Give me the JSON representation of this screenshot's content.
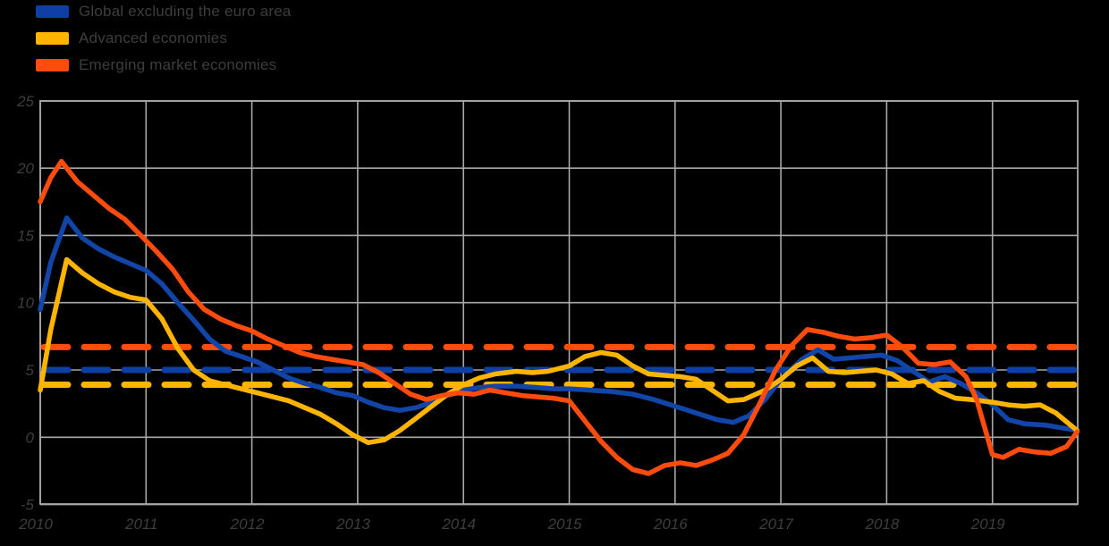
{
  "page": {
    "background_color": "#000000",
    "text_color": "#3d3d3c",
    "grid_color": "#a8a8a8"
  },
  "legend": {
    "items": [
      {
        "label": "Global excluding the euro area",
        "color": "#0d3fa5"
      },
      {
        "label": "Advanced economies",
        "color": "#ffb400"
      },
      {
        "label": "Emerging market economies",
        "color": "#ff4b0c"
      }
    ]
  },
  "chart_data": {
    "type": "line",
    "title": "",
    "xlabel": "",
    "ylabel": "",
    "grid": true,
    "legend_position": "top-left",
    "x_axis": {
      "min": 2010,
      "max": 2019.8,
      "ticks": [
        2010,
        2011,
        2012,
        2013,
        2014,
        2015,
        2016,
        2017,
        2018,
        2019
      ]
    },
    "y_axis": {
      "min": -5,
      "max": 25,
      "ticks": [
        25,
        20,
        15,
        10,
        5,
        0,
        -5
      ]
    },
    "average_lines": [
      {
        "name": "Global excluding the euro area (average)",
        "value": 5.0,
        "color": "#0d3fa5"
      },
      {
        "name": "Advanced economies (average)",
        "value": 3.9,
        "color": "#ffb400"
      },
      {
        "name": "Emerging market economies (average)",
        "value": 6.7,
        "color": "#ff4b0c"
      }
    ],
    "series": [
      {
        "name": "Global excluding the euro area",
        "color": "#1245a8",
        "points": [
          [
            2010.0,
            9.5
          ],
          [
            2010.1,
            13.0
          ],
          [
            2010.25,
            16.3
          ],
          [
            2010.4,
            14.8
          ],
          [
            2010.55,
            14.0
          ],
          [
            2010.7,
            13.4
          ],
          [
            2010.85,
            12.9
          ],
          [
            2011.0,
            12.4
          ],
          [
            2011.15,
            11.4
          ],
          [
            2011.3,
            10.0
          ],
          [
            2011.45,
            8.7
          ],
          [
            2011.6,
            7.3
          ],
          [
            2011.75,
            6.4
          ],
          [
            2011.9,
            6.0
          ],
          [
            2012.05,
            5.6
          ],
          [
            2012.2,
            5.0
          ],
          [
            2012.35,
            4.4
          ],
          [
            2012.5,
            4.0
          ],
          [
            2012.65,
            3.7
          ],
          [
            2012.8,
            3.3
          ],
          [
            2012.95,
            3.1
          ],
          [
            2013.1,
            2.6
          ],
          [
            2013.25,
            2.2
          ],
          [
            2013.4,
            2.0
          ],
          [
            2013.55,
            2.2
          ],
          [
            2013.7,
            2.6
          ],
          [
            2013.85,
            3.1
          ],
          [
            2014.0,
            3.5
          ],
          [
            2014.15,
            3.7
          ],
          [
            2014.3,
            3.8
          ],
          [
            2014.5,
            3.8
          ],
          [
            2014.7,
            3.7
          ],
          [
            2014.85,
            3.6
          ],
          [
            2015.0,
            3.6
          ],
          [
            2015.2,
            3.5
          ],
          [
            2015.4,
            3.4
          ],
          [
            2015.6,
            3.2
          ],
          [
            2015.8,
            2.8
          ],
          [
            2016.0,
            2.3
          ],
          [
            2016.2,
            1.8
          ],
          [
            2016.4,
            1.3
          ],
          [
            2016.55,
            1.1
          ],
          [
            2016.7,
            1.6
          ],
          [
            2016.85,
            2.8
          ],
          [
            2017.0,
            4.3
          ],
          [
            2017.2,
            5.8
          ],
          [
            2017.35,
            6.5
          ],
          [
            2017.5,
            5.8
          ],
          [
            2017.65,
            5.9
          ],
          [
            2017.8,
            6.0
          ],
          [
            2017.95,
            6.1
          ],
          [
            2018.1,
            5.7
          ],
          [
            2018.25,
            4.9
          ],
          [
            2018.4,
            4.1
          ],
          [
            2018.55,
            4.5
          ],
          [
            2018.7,
            4.0
          ],
          [
            2018.85,
            3.3
          ],
          [
            2019.0,
            2.4
          ],
          [
            2019.15,
            1.3
          ],
          [
            2019.3,
            1.0
          ],
          [
            2019.5,
            0.9
          ],
          [
            2019.65,
            0.7
          ],
          [
            2019.8,
            0.5
          ]
        ]
      },
      {
        "name": "Advanced economies",
        "color": "#ffb400",
        "points": [
          [
            2010.0,
            3.5
          ],
          [
            2010.1,
            8.0
          ],
          [
            2010.25,
            13.2
          ],
          [
            2010.4,
            12.2
          ],
          [
            2010.55,
            11.4
          ],
          [
            2010.7,
            10.8
          ],
          [
            2010.85,
            10.4
          ],
          [
            2011.0,
            10.2
          ],
          [
            2011.15,
            8.8
          ],
          [
            2011.3,
            6.6
          ],
          [
            2011.45,
            5.0
          ],
          [
            2011.6,
            4.2
          ],
          [
            2011.75,
            3.9
          ],
          [
            2011.9,
            3.6
          ],
          [
            2012.05,
            3.3
          ],
          [
            2012.2,
            3.0
          ],
          [
            2012.35,
            2.7
          ],
          [
            2012.5,
            2.2
          ],
          [
            2012.65,
            1.7
          ],
          [
            2012.8,
            1.0
          ],
          [
            2012.95,
            0.2
          ],
          [
            2013.1,
            -0.4
          ],
          [
            2013.25,
            -0.2
          ],
          [
            2013.4,
            0.5
          ],
          [
            2013.55,
            1.4
          ],
          [
            2013.7,
            2.3
          ],
          [
            2013.85,
            3.2
          ],
          [
            2014.0,
            3.9
          ],
          [
            2014.15,
            4.4
          ],
          [
            2014.3,
            4.7
          ],
          [
            2014.5,
            4.9
          ],
          [
            2014.65,
            4.8
          ],
          [
            2014.8,
            4.9
          ],
          [
            2015.0,
            5.3
          ],
          [
            2015.15,
            6.0
          ],
          [
            2015.3,
            6.3
          ],
          [
            2015.45,
            6.1
          ],
          [
            2015.6,
            5.3
          ],
          [
            2015.75,
            4.7
          ],
          [
            2015.9,
            4.6
          ],
          [
            2016.05,
            4.5
          ],
          [
            2016.2,
            4.3
          ],
          [
            2016.35,
            3.5
          ],
          [
            2016.5,
            2.7
          ],
          [
            2016.65,
            2.8
          ],
          [
            2016.85,
            3.5
          ],
          [
            2017.0,
            4.3
          ],
          [
            2017.15,
            5.3
          ],
          [
            2017.3,
            5.9
          ],
          [
            2017.45,
            4.9
          ],
          [
            2017.6,
            4.8
          ],
          [
            2017.75,
            4.9
          ],
          [
            2017.9,
            5.0
          ],
          [
            2018.05,
            4.7
          ],
          [
            2018.2,
            4.0
          ],
          [
            2018.35,
            4.2
          ],
          [
            2018.5,
            3.4
          ],
          [
            2018.65,
            2.9
          ],
          [
            2018.8,
            2.8
          ],
          [
            2019.0,
            2.6
          ],
          [
            2019.15,
            2.4
          ],
          [
            2019.3,
            2.3
          ],
          [
            2019.45,
            2.4
          ],
          [
            2019.6,
            1.8
          ],
          [
            2019.8,
            0.5
          ]
        ]
      },
      {
        "name": "Emerging market economies",
        "color": "#ff4b0c",
        "points": [
          [
            2010.0,
            17.5
          ],
          [
            2010.1,
            19.3
          ],
          [
            2010.2,
            20.5
          ],
          [
            2010.35,
            19.0
          ],
          [
            2010.5,
            18.0
          ],
          [
            2010.65,
            17.0
          ],
          [
            2010.8,
            16.2
          ],
          [
            2010.95,
            15.0
          ],
          [
            2011.1,
            13.8
          ],
          [
            2011.25,
            12.5
          ],
          [
            2011.4,
            10.8
          ],
          [
            2011.55,
            9.5
          ],
          [
            2011.7,
            8.8
          ],
          [
            2011.85,
            8.3
          ],
          [
            2012.0,
            7.9
          ],
          [
            2012.15,
            7.3
          ],
          [
            2012.3,
            6.8
          ],
          [
            2012.45,
            6.3
          ],
          [
            2012.6,
            6.0
          ],
          [
            2012.75,
            5.8
          ],
          [
            2012.9,
            5.6
          ],
          [
            2013.05,
            5.4
          ],
          [
            2013.2,
            4.8
          ],
          [
            2013.35,
            4.0
          ],
          [
            2013.5,
            3.2
          ],
          [
            2013.65,
            2.8
          ],
          [
            2013.8,
            3.1
          ],
          [
            2013.95,
            3.3
          ],
          [
            2014.1,
            3.2
          ],
          [
            2014.25,
            3.5
          ],
          [
            2014.4,
            3.3
          ],
          [
            2014.55,
            3.1
          ],
          [
            2014.7,
            3.0
          ],
          [
            2014.85,
            2.9
          ],
          [
            2015.0,
            2.7
          ],
          [
            2015.15,
            1.2
          ],
          [
            2015.3,
            -0.3
          ],
          [
            2015.45,
            -1.5
          ],
          [
            2015.6,
            -2.4
          ],
          [
            2015.75,
            -2.7
          ],
          [
            2015.9,
            -2.1
          ],
          [
            2016.05,
            -1.9
          ],
          [
            2016.2,
            -2.1
          ],
          [
            2016.35,
            -1.7
          ],
          [
            2016.5,
            -1.2
          ],
          [
            2016.65,
            0.2
          ],
          [
            2016.8,
            2.5
          ],
          [
            2016.95,
            5.0
          ],
          [
            2017.1,
            6.8
          ],
          [
            2017.25,
            8.0
          ],
          [
            2017.4,
            7.8
          ],
          [
            2017.55,
            7.5
          ],
          [
            2017.7,
            7.3
          ],
          [
            2017.85,
            7.4
          ],
          [
            2018.0,
            7.6
          ],
          [
            2018.15,
            6.7
          ],
          [
            2018.3,
            5.5
          ],
          [
            2018.45,
            5.4
          ],
          [
            2018.6,
            5.6
          ],
          [
            2018.75,
            4.5
          ],
          [
            2018.85,
            2.8
          ],
          [
            2019.0,
            -1.3
          ],
          [
            2019.1,
            -1.5
          ],
          [
            2019.25,
            -0.9
          ],
          [
            2019.4,
            -1.1
          ],
          [
            2019.55,
            -1.2
          ],
          [
            2019.7,
            -0.7
          ],
          [
            2019.8,
            0.4
          ]
        ]
      }
    ]
  }
}
